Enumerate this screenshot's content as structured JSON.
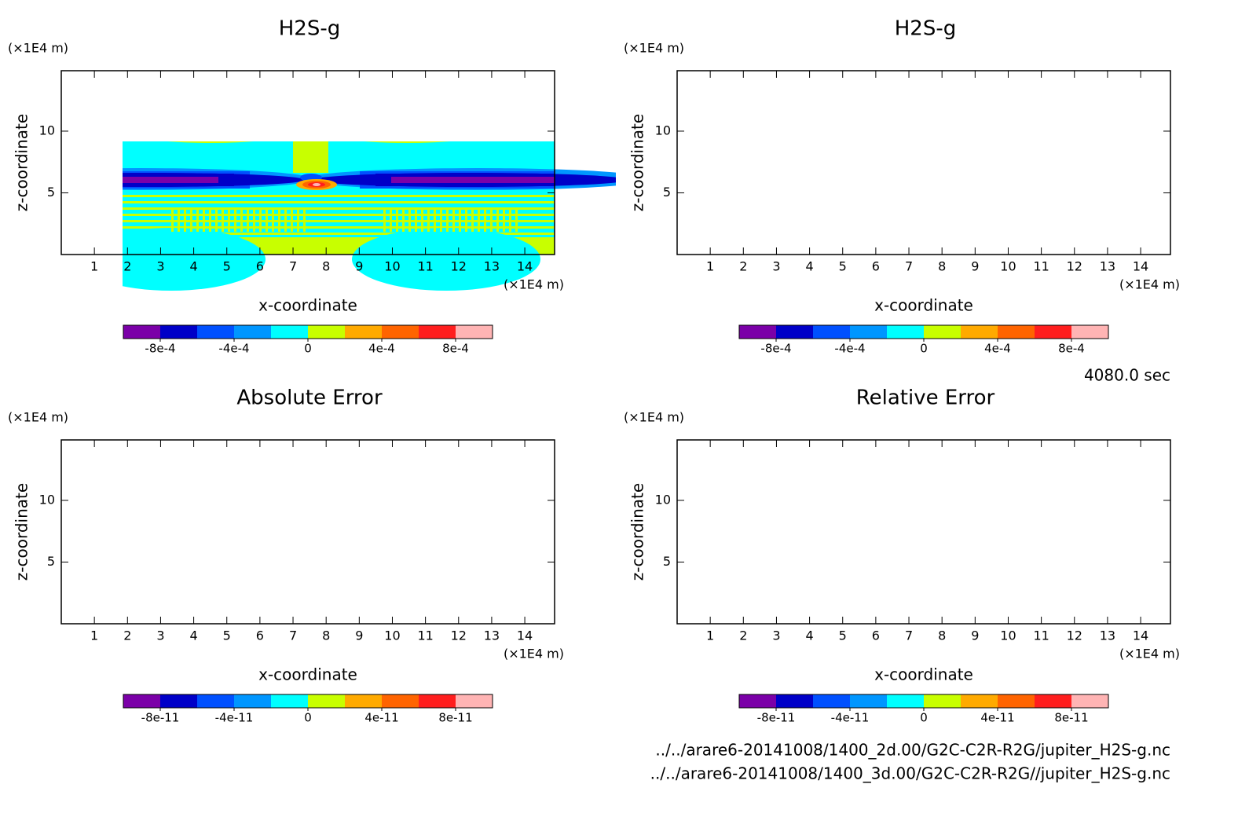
{
  "chart_data": [
    {
      "type": "contour",
      "title": "H2S-g",
      "x_label": "x-coordinate",
      "y_label": "z-coordinate",
      "x_unit": "(×1E4 m)",
      "y_unit": "(×1E4 m)",
      "xlim": [
        0,
        14.9
      ],
      "ylim": [
        0,
        14.9
      ],
      "xticks": [
        1,
        2,
        3,
        4,
        5,
        6,
        7,
        8,
        9,
        10,
        11,
        12,
        13,
        14
      ],
      "yticks": [
        5,
        10
      ],
      "colorbar": {
        "lim": [
          -0.001,
          0.001
        ],
        "colors": [
          "#7b00a8",
          "#0000c8",
          "#0050ff",
          "#0096ff",
          "#00ffff",
          "#c8ff00",
          "#ffaa00",
          "#ff6400",
          "#ff1e1e",
          "#ffb4b4"
        ],
        "ticks": [
          {
            "value": -0.0008,
            "label": "-8e-4"
          },
          {
            "value": -0.0004,
            "label": "-4e-4"
          },
          0,
          {
            "value": 0.0004,
            "label": "4e-4"
          },
          {
            "value": 0.0008,
            "label": "8e-4"
          }
        ]
      }
    },
    {
      "type": "contour",
      "title": "H2S-g",
      "x_label": "x-coordinate",
      "y_label": "z-coordinate",
      "x_unit": "(×1E4 m)",
      "y_unit": "(×1E4 m)",
      "xlim": [
        0,
        14.9
      ],
      "ylim": [
        0,
        14.9
      ],
      "xticks": [
        1,
        2,
        3,
        4,
        5,
        6,
        7,
        8,
        9,
        10,
        11,
        12,
        13,
        14
      ],
      "yticks": [
        5,
        10
      ],
      "colorbar": {
        "lim": [
          -0.001,
          0.001
        ],
        "colors": [
          "#7b00a8",
          "#0000c8",
          "#0050ff",
          "#0096ff",
          "#00ffff",
          "#c8ff00",
          "#ffaa00",
          "#ff6400",
          "#ff1e1e",
          "#ffb4b4"
        ],
        "ticks": [
          {
            "value": -0.0008,
            "label": "-8e-4"
          },
          {
            "value": -0.0004,
            "label": "-4e-4"
          },
          0,
          {
            "value": 0.0004,
            "label": "4e-4"
          },
          {
            "value": 0.0008,
            "label": "8e-4"
          }
        ]
      }
    },
    {
      "type": "contour",
      "title": "Absolute Error",
      "x_label": "x-coordinate",
      "y_label": "z-coordinate",
      "x_unit": "(×1E4 m)",
      "y_unit": "(×1E4 m)",
      "xlim": [
        0,
        14.9
      ],
      "ylim": [
        0,
        14.9
      ],
      "xticks": [
        1,
        2,
        3,
        4,
        5,
        6,
        7,
        8,
        9,
        10,
        11,
        12,
        13,
        14
      ],
      "yticks": [
        5,
        10
      ],
      "colorbar": {
        "lim": [
          -1e-10,
          1e-10
        ],
        "colors": [
          "#7b00a8",
          "#0000c8",
          "#0050ff",
          "#0096ff",
          "#00ffff",
          "#c8ff00",
          "#ffaa00",
          "#ff6400",
          "#ff1e1e",
          "#ffb4b4"
        ],
        "ticks": [
          {
            "value": -8e-11,
            "label": "-8e-11"
          },
          {
            "value": -4e-11,
            "label": "-4e-11"
          },
          0,
          {
            "value": 4e-11,
            "label": "4e-11"
          },
          {
            "value": 8e-11,
            "label": "8e-11"
          }
        ]
      }
    },
    {
      "type": "contour",
      "title": "Relative Error",
      "x_label": "x-coordinate",
      "y_label": "z-coordinate",
      "x_unit": "(×1E4 m)",
      "y_unit": "(×1E4 m)",
      "xlim": [
        0,
        14.9
      ],
      "ylim": [
        0,
        14.9
      ],
      "xticks": [
        1,
        2,
        3,
        4,
        5,
        6,
        7,
        8,
        9,
        10,
        11,
        12,
        13,
        14
      ],
      "yticks": [
        5,
        10
      ],
      "colorbar": {
        "lim": [
          -1e-10,
          1e-10
        ],
        "colors": [
          "#7b00a8",
          "#0000c8",
          "#0050ff",
          "#0096ff",
          "#00ffff",
          "#c8ff00",
          "#ffaa00",
          "#ff6400",
          "#ff1e1e",
          "#ffb4b4"
        ],
        "ticks": [
          {
            "value": -8e-11,
            "label": "-8e-11"
          },
          {
            "value": -4e-11,
            "label": "-4e-11"
          },
          0,
          {
            "value": 4e-11,
            "label": "4e-11"
          },
          {
            "value": 8e-11,
            "label": "8e-11"
          }
        ]
      }
    }
  ],
  "time_label": "4080.0 sec",
  "files": [
    "../../arare6-20141008/1400_2d.00/G2C-C2R-R2G/jupiter_H2S-g.nc",
    "../../arare6-20141008/1400_3d.00/G2C-C2R-R2G//jupiter_H2S-g.nc"
  ]
}
